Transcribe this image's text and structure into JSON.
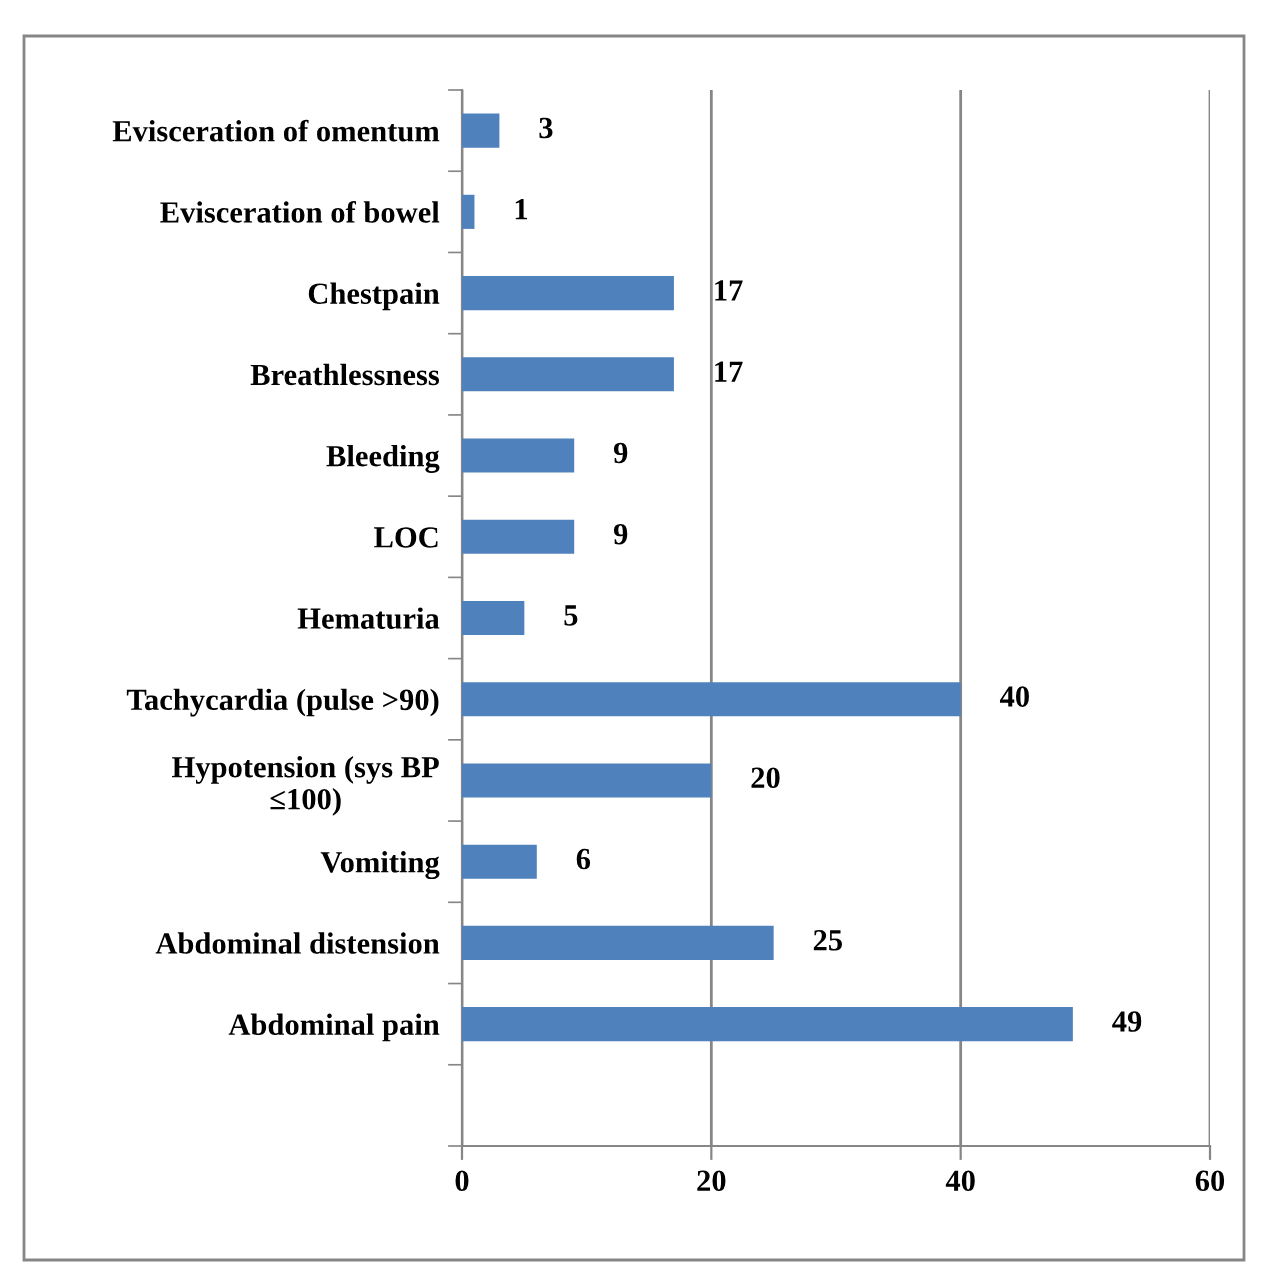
{
  "chart_data": {
    "type": "bar",
    "orientation": "horizontal",
    "categories": [
      "Evisceration of omentum",
      "Evisceration of bowel",
      "Chestpain",
      "Breathlessness",
      "Bleeding",
      "LOC",
      "Hematuria",
      "Tachycardia (pulse >90)",
      "Hypotension (sys BP\n≤100)",
      "Vomiting",
      "Abdominal distension",
      "Abdominal pain"
    ],
    "values": [
      3,
      1,
      17,
      17,
      9,
      9,
      5,
      40,
      20,
      6,
      25,
      49
    ],
    "color": "#4f81bd",
    "xlim": [
      0,
      60
    ],
    "xticks": [
      0,
      20,
      40,
      60
    ],
    "grid": "x",
    "data_labels": true
  }
}
